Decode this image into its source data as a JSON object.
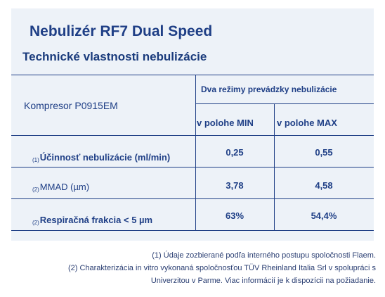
{
  "title": "Nebulizér RF7 Dual Speed",
  "subtitle": "Technické vlastnosti nebulizácie",
  "table": {
    "compressor_label": "Kompresor P0915EM",
    "modes_header": "Dva režimy prevádzky nebulizácie",
    "col_min": "v polohe MIN",
    "col_max": "v polohe MAX",
    "rows": [
      {
        "note": "(1)",
        "label": "Účinnosť nebulizácie (ml/min)",
        "min": "0,25",
        "max": "0,55"
      },
      {
        "note": "(2)",
        "label": "MMAD (µm)",
        "min": "3,78",
        "max": "4,58"
      },
      {
        "note": "(2)",
        "label": "Respiračná frakcia < 5 µm",
        "min": "63%",
        "max": "54,4%"
      }
    ]
  },
  "footnotes": [
    "(1) Údaje zozbierané podľa interného postupu spoločnosti Flaem.",
    "(2) Charakterizácia in vitro vykonaná spoločnosťou TÜV Rheinland Italia Srl v spolupráci s",
    "Univerzitou v Parme. Viac informácií je k dispozícii na požiadanie."
  ]
}
